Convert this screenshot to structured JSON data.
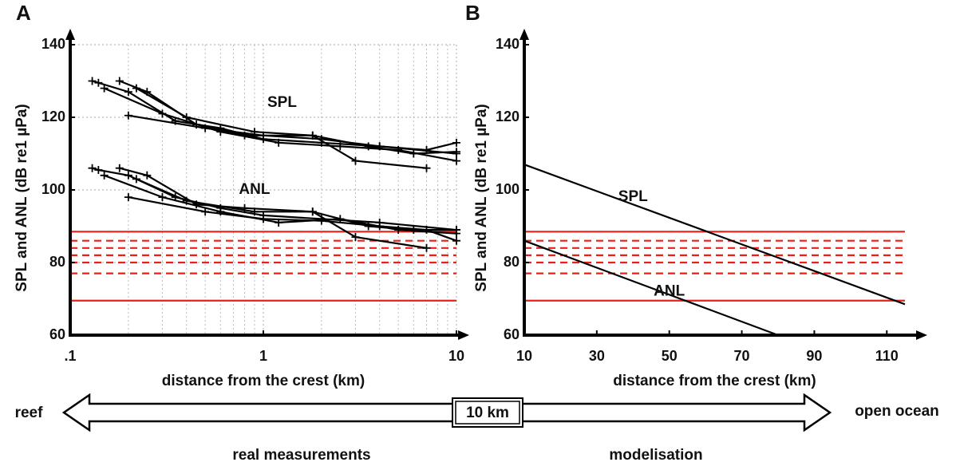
{
  "chart_data": [
    {
      "type": "line",
      "label": "A",
      "ylabel": "SPL and ANL (dB re1 µPa)",
      "xlabel": "distance from the crest (km)",
      "xscale": "log",
      "xlim": [
        0.1,
        10
      ],
      "xticks": [
        {
          "value": 0.1,
          "label": ".1"
        },
        1,
        10
      ],
      "minor_xticks": [
        0.2,
        0.3,
        0.4,
        0.5,
        0.6,
        0.7,
        0.8,
        0.9,
        2,
        3,
        4,
        5,
        6,
        7,
        8,
        9
      ],
      "ylim": [
        60,
        140
      ],
      "yticks": [
        60,
        80,
        100,
        120,
        140
      ],
      "grid": true,
      "markers": "+",
      "line_color": "#000000",
      "annotations": [
        "SPL",
        "ANL"
      ],
      "reference_lines": {
        "color": "#e8201a",
        "solid": [
          88.5,
          69.5
        ],
        "dashed": [
          86,
          84,
          82,
          80,
          77
        ]
      },
      "series": [
        {
          "x": [
            0.13,
            0.14,
            0.2,
            0.35,
            0.6,
            1,
            2,
            4,
            10
          ],
          "values": [
            130,
            129.5,
            127,
            119,
            117,
            114,
            113,
            112,
            110
          ]
        },
        {
          "x": [
            0.18,
            0.25,
            0.45,
            0.8,
            1.8,
            3,
            7
          ],
          "values": [
            130,
            127,
            118,
            115,
            115,
            108,
            106
          ]
        },
        {
          "x": [
            0.2,
            0.5,
            1,
            2,
            4,
            7,
            10
          ],
          "values": [
            120.5,
            117,
            115,
            114,
            112,
            111,
            113
          ]
        },
        {
          "x": [
            0.15,
            0.3,
            0.6,
            1.2,
            2.5,
            5,
            10
          ],
          "values": [
            128,
            121,
            116,
            113,
            112,
            111,
            108
          ]
        },
        {
          "x": [
            0.22,
            0.4,
            0.9,
            1.8,
            3.5,
            6,
            10
          ],
          "values": [
            128,
            120,
            116,
            115,
            112,
            110,
            110.5
          ]
        },
        {
          "x": [
            0.13,
            0.14,
            0.2,
            0.35,
            0.6,
            1,
            2,
            4,
            10
          ],
          "values": [
            106,
            105.5,
            104,
            98,
            95,
            93,
            92,
            91,
            89
          ]
        },
        {
          "x": [
            0.18,
            0.25,
            0.45,
            0.8,
            1.8,
            3,
            7
          ],
          "values": [
            106,
            104,
            96,
            95,
            94,
            87,
            84
          ]
        },
        {
          "x": [
            0.2,
            0.5,
            1,
            2,
            4,
            7,
            10
          ],
          "values": [
            98,
            94,
            92,
            91.5,
            90,
            89,
            86
          ]
        },
        {
          "x": [
            0.15,
            0.3,
            0.6,
            1.2,
            2.5,
            5,
            10
          ],
          "values": [
            104,
            98,
            94,
            91,
            92,
            89,
            88
          ]
        },
        {
          "x": [
            0.22,
            0.4,
            0.9,
            1.8,
            3.5,
            6,
            10
          ],
          "values": [
            103,
            97,
            94,
            94,
            90,
            89,
            89
          ]
        }
      ]
    },
    {
      "type": "line",
      "label": "B",
      "ylabel": "SPL and ANL (dB re1 µPa)",
      "xlabel": "distance from the crest (km)",
      "xlim": [
        10,
        115
      ],
      "xticks": [
        10,
        30,
        50,
        70,
        90,
        110
      ],
      "ylim": [
        60,
        140
      ],
      "yticks": [
        60,
        80,
        100,
        120,
        140
      ],
      "grid": false,
      "line_color": "#000000",
      "annotations": [
        "SPL",
        "ANL"
      ],
      "reference_lines": {
        "color": "#e8201a",
        "solid": [
          88.5,
          69.5
        ],
        "dashed": [
          86,
          84,
          82,
          80,
          77
        ]
      },
      "series": [
        {
          "x": [
            10,
            115
          ],
          "values": [
            107,
            68.5
          ]
        },
        {
          "x": [
            10,
            80
          ],
          "values": [
            86,
            60
          ]
        }
      ]
    }
  ],
  "diagram": {
    "left": "reef",
    "center": "10 km",
    "right": "open ocean",
    "left_caption": "real measurements",
    "right_caption": "modelisation"
  }
}
